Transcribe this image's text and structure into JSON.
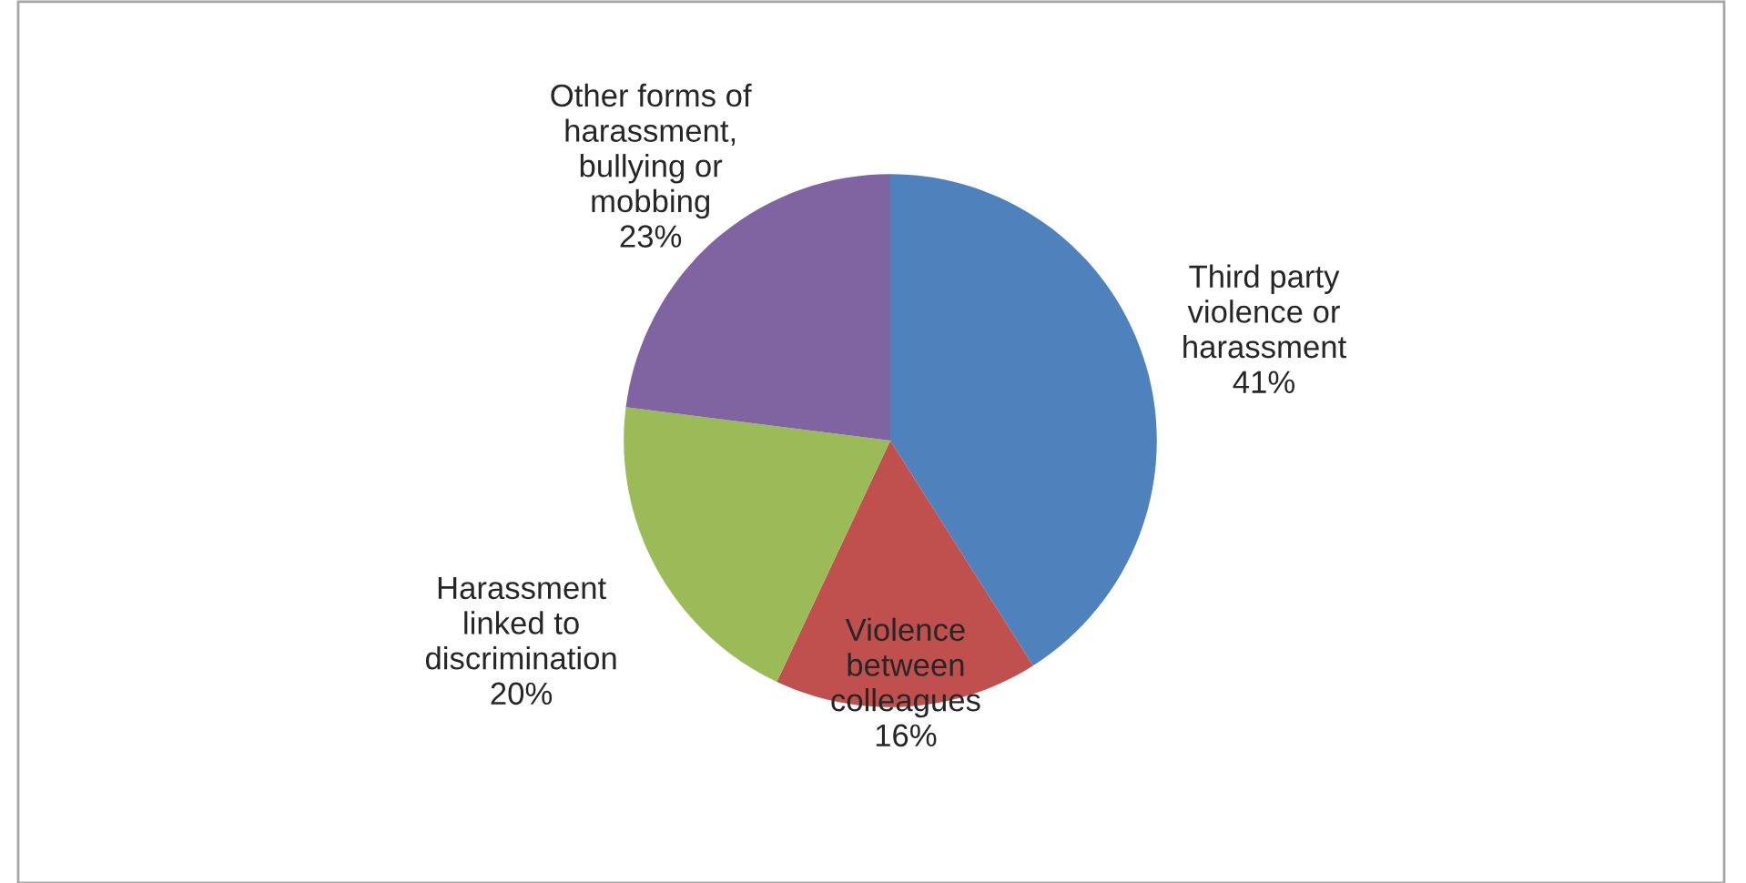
{
  "chart_data": {
    "type": "pie",
    "categories": [
      "Third party\nviolence or\nharassment",
      "Violence\nbetween\ncolleagues",
      "Harassment\nlinked to\ndiscrimination",
      "Other forms of\nharassment,\nbullying or\nmobbing"
    ],
    "values": [
      41,
      16,
      20,
      23
    ],
    "colors": [
      "#4f81bd",
      "#c0504d",
      "#9bbb59",
      "#8064a2"
    ],
    "value_labels": [
      "41%",
      "16%",
      "20%",
      "23%"
    ],
    "legend": false
  }
}
